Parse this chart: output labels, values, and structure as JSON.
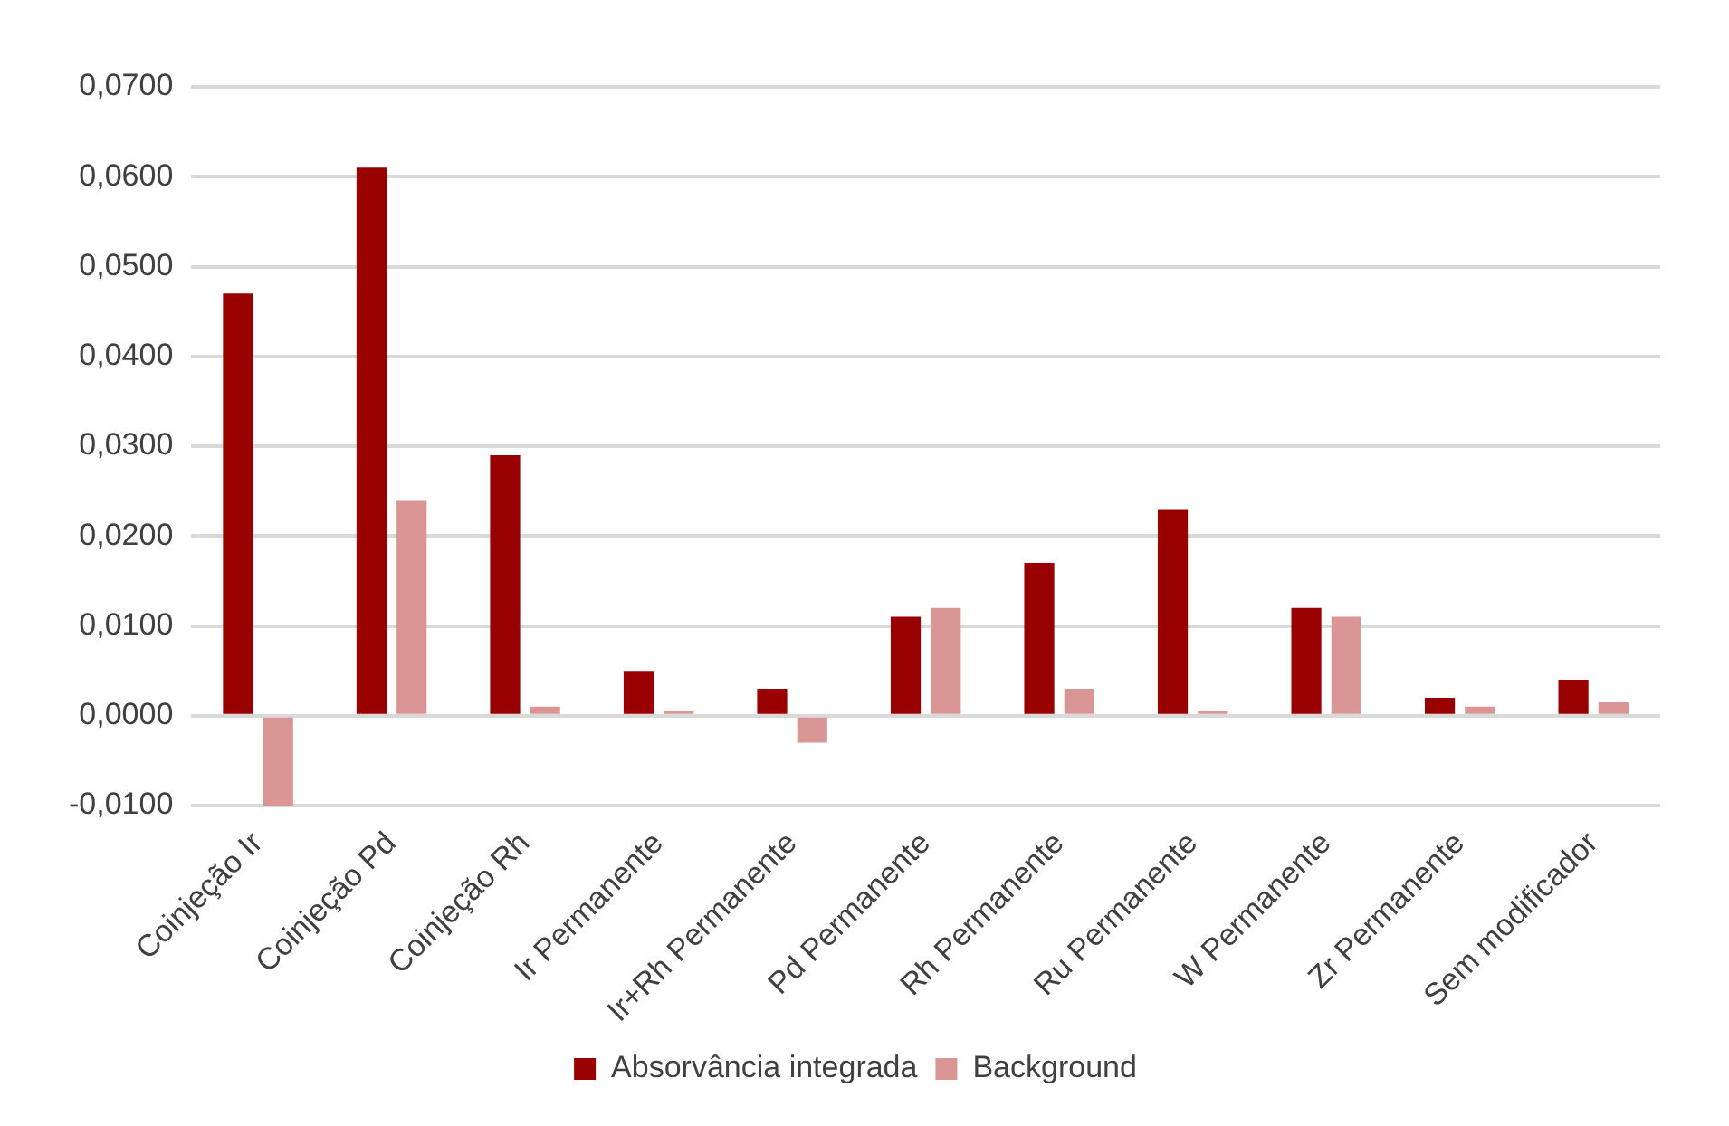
{
  "chart_data": {
    "type": "bar",
    "categories": [
      "Coinjeção Ir",
      "Coinjeção Pd",
      "Coinjeção Rh",
      "Ir Permanente",
      "Ir+Rh Permanente",
      "Pd Permanente",
      "Rh Permanente",
      "Ru Permanente",
      "W Permanente",
      "Zr Permanente",
      "Sem modificador"
    ],
    "series": [
      {
        "name": "Absorvância integrada",
        "color": "#990000",
        "values": [
          0.047,
          0.061,
          0.029,
          0.005,
          0.003,
          0.011,
          0.017,
          0.023,
          0.012,
          0.002,
          0.004
        ]
      },
      {
        "name": "Background",
        "color": "#d99694",
        "values": [
          -0.01,
          0.024,
          0.001,
          0.0005,
          -0.003,
          0.012,
          0.003,
          0.0005,
          0.011,
          0.001,
          0.0015
        ]
      }
    ],
    "ylim": [
      -0.01,
      0.07
    ],
    "yticks": [
      {
        "value": -0.01,
        "label": "-0,0100"
      },
      {
        "value": 0,
        "label": "0,0000"
      },
      {
        "value": 0.01,
        "label": "0,0100"
      },
      {
        "value": 0.02,
        "label": "0,0200"
      },
      {
        "value": 0.03,
        "label": "0,0300"
      },
      {
        "value": 0.04,
        "label": "0,0400"
      },
      {
        "value": 0.05,
        "label": "0,0500"
      },
      {
        "value": 0.06,
        "label": "0,0600"
      },
      {
        "value": 0.07,
        "label": "0,0700"
      }
    ],
    "grid": "y",
    "legend": "bottom"
  }
}
